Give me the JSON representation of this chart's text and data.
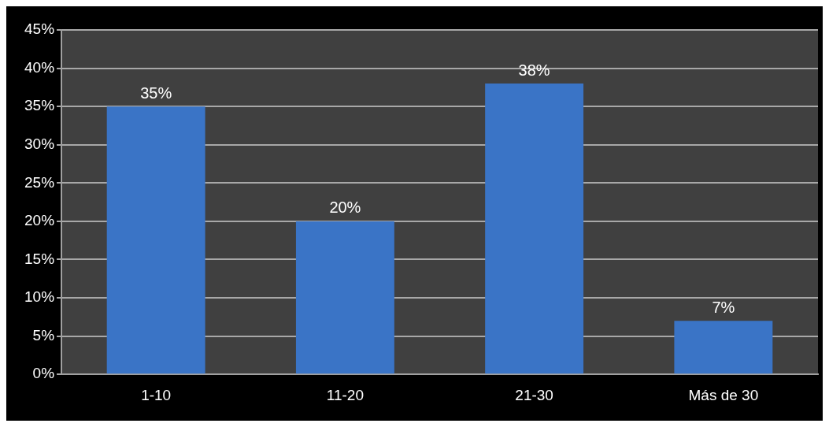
{
  "chart_data": {
    "type": "bar",
    "categories": [
      "1-10",
      "11-20",
      "21-30",
      "Más de 30"
    ],
    "values": [
      35,
      20,
      38,
      7
    ],
    "color": "#3a74c6",
    "value_labels": [
      "35%",
      "20%",
      "38%",
      "7%"
    ],
    "ylim": [
      0,
      45
    ],
    "yticks": [
      {
        "value": 0,
        "label": "0%"
      },
      {
        "value": 5,
        "label": "5%"
      },
      {
        "value": 10,
        "label": "10%"
      },
      {
        "value": 15,
        "label": "15%"
      },
      {
        "value": 20,
        "label": "20%"
      },
      {
        "value": 25,
        "label": "25%"
      },
      {
        "value": 30,
        "label": "30%"
      },
      {
        "value": 35,
        "label": "35%"
      },
      {
        "value": 40,
        "label": "40%"
      },
      {
        "value": 45,
        "label": "45%"
      }
    ],
    "grid": "y",
    "legend": false
  }
}
